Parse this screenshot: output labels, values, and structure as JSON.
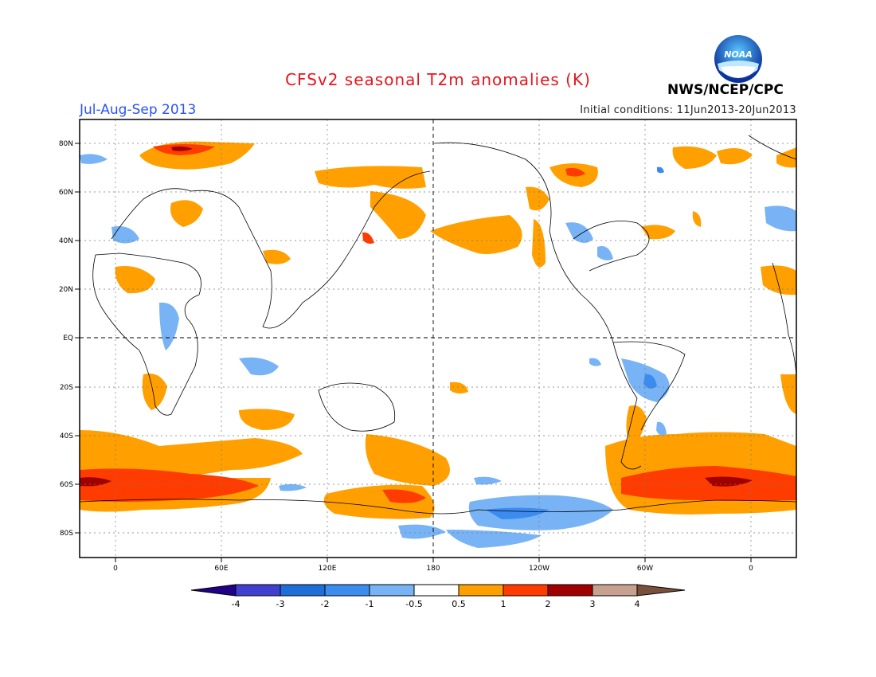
{
  "header": {
    "title": "CFSv2 seasonal T2m anomalies (K)",
    "season": "Jul-Aug-Sep 2013",
    "initial_conditions": "Initial conditions: 11Jun2013-20Jun2013",
    "agency": "NWS/NCEP/CPC",
    "logo_text": "NOAA"
  },
  "map": {
    "lat_labels": [
      "80N",
      "60N",
      "40N",
      "20N",
      "EQ",
      "20S",
      "40S",
      "60S",
      "80S"
    ],
    "lon_labels": [
      "0",
      "60E",
      "120E",
      "180",
      "120W",
      "60W",
      "0"
    ]
  },
  "colorbar": {
    "tick_labels": [
      "-4",
      "-3",
      "-2",
      "-1",
      "-0.5",
      "0.5",
      "1",
      "2",
      "3",
      "4"
    ],
    "colors": [
      "#200088",
      "#4040d0",
      "#1e6ed8",
      "#3c8cf0",
      "#78b4f5",
      "#ffffff",
      "#ffa000",
      "#ff3c00",
      "#a00000",
      "#c8a090",
      "#78503c"
    ]
  }
}
